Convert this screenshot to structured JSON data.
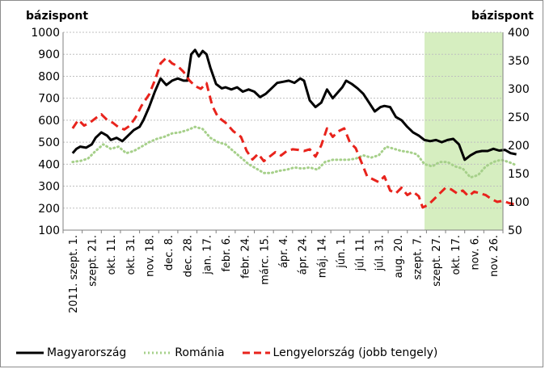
{
  "chart_data": {
    "type": "line",
    "y_unit_left": "bázispont",
    "y_unit_right": "bázispont",
    "ylim_left": [
      100,
      1000
    ],
    "ylim_right": [
      50,
      400
    ],
    "yticks_left": [
      100,
      200,
      300,
      400,
      500,
      600,
      700,
      800,
      900,
      1000
    ],
    "yticks_right": [
      50,
      100,
      150,
      200,
      250,
      300,
      350,
      400
    ],
    "x_tick_labels": [
      "2011. szept. 1.",
      "szept. 21.",
      "okt. 11.",
      "okt. 31.",
      "nov. 18.",
      "dec. 8.",
      "dec. 28.",
      "jan. 17.",
      "febr. 6.",
      "febr. 24.",
      "márc. 15.",
      "ápr. 4.",
      "ápr. 24.",
      "máj. 14.",
      "jún. 1.",
      "júl. 11.",
      "júl. 31.",
      "aug. 20.",
      "szept. 7.",
      "szept. 27.",
      "okt. 17.",
      "nov. 6.",
      "nov. 26."
    ],
    "highlight_region": {
      "from_tick": 18.4,
      "to_tick": 22.6,
      "color": "#d6eec0"
    },
    "grid": "horizontal",
    "legend_position": "bottom",
    "series": [
      {
        "name": "Magyarország",
        "axis": "left",
        "color": "#000000",
        "style": "solid",
        "points": [
          [
            0,
            450
          ],
          [
            0.2,
            470
          ],
          [
            0.4,
            480
          ],
          [
            0.7,
            475
          ],
          [
            1,
            490
          ],
          [
            1.2,
            520
          ],
          [
            1.5,
            545
          ],
          [
            1.8,
            530
          ],
          [
            2,
            510
          ],
          [
            2.3,
            520
          ],
          [
            2.6,
            505
          ],
          [
            2.9,
            530
          ],
          [
            3.2,
            555
          ],
          [
            3.5,
            570
          ],
          [
            3.7,
            600
          ],
          [
            4,
            660
          ],
          [
            4.3,
            730
          ],
          [
            4.6,
            790
          ],
          [
            4.9,
            760
          ],
          [
            5.2,
            780
          ],
          [
            5.5,
            790
          ],
          [
            5.8,
            780
          ],
          [
            6,
            780
          ],
          [
            6.2,
            900
          ],
          [
            6.4,
            920
          ],
          [
            6.6,
            890
          ],
          [
            6.8,
            915
          ],
          [
            7,
            900
          ],
          [
            7.2,
            840
          ],
          [
            7.5,
            765
          ],
          [
            7.8,
            745
          ],
          [
            8,
            750
          ],
          [
            8.3,
            740
          ],
          [
            8.6,
            750
          ],
          [
            8.9,
            730
          ],
          [
            9.2,
            740
          ],
          [
            9.5,
            730
          ],
          [
            9.8,
            705
          ],
          [
            10.1,
            720
          ],
          [
            10.4,
            745
          ],
          [
            10.7,
            770
          ],
          [
            11,
            775
          ],
          [
            11.3,
            780
          ],
          [
            11.6,
            770
          ],
          [
            11.9,
            790
          ],
          [
            12.1,
            780
          ],
          [
            12.4,
            690
          ],
          [
            12.7,
            660
          ],
          [
            13,
            680
          ],
          [
            13.3,
            740
          ],
          [
            13.6,
            700
          ],
          [
            13.9,
            730
          ],
          [
            14.1,
            750
          ],
          [
            14.3,
            780
          ],
          [
            14.6,
            765
          ],
          [
            14.9,
            745
          ],
          [
            15.2,
            720
          ],
          [
            15.5,
            680
          ],
          [
            15.8,
            640
          ],
          [
            16.1,
            660
          ],
          [
            16.3,
            665
          ],
          [
            16.6,
            660
          ],
          [
            16.9,
            615
          ],
          [
            17.2,
            600
          ],
          [
            17.5,
            570
          ],
          [
            17.8,
            545
          ],
          [
            18.1,
            530
          ],
          [
            18.4,
            510
          ],
          [
            18.7,
            505
          ],
          [
            19,
            510
          ],
          [
            19.3,
            500
          ],
          [
            19.6,
            510
          ],
          [
            19.9,
            515
          ],
          [
            20.2,
            490
          ],
          [
            20.5,
            420
          ],
          [
            20.8,
            440
          ],
          [
            21.1,
            455
          ],
          [
            21.4,
            460
          ],
          [
            21.7,
            460
          ],
          [
            22,
            470
          ],
          [
            22.3,
            462
          ],
          [
            22.6,
            465
          ],
          [
            22.9,
            450
          ],
          [
            23.2,
            445
          ]
        ]
      },
      {
        "name": "Románia",
        "axis": "left",
        "color": "#a6d08a",
        "style": "dotted",
        "points": [
          [
            0,
            410
          ],
          [
            0.4,
            415
          ],
          [
            0.8,
            425
          ],
          [
            1.2,
            460
          ],
          [
            1.6,
            490
          ],
          [
            2,
            470
          ],
          [
            2.4,
            480
          ],
          [
            2.8,
            450
          ],
          [
            3.2,
            460
          ],
          [
            3.6,
            480
          ],
          [
            4,
            500
          ],
          [
            4.4,
            515
          ],
          [
            4.8,
            525
          ],
          [
            5.2,
            540
          ],
          [
            5.6,
            545
          ],
          [
            6,
            555
          ],
          [
            6.4,
            570
          ],
          [
            6.8,
            560
          ],
          [
            7.2,
            520
          ],
          [
            7.6,
            500
          ],
          [
            8,
            490
          ],
          [
            8.4,
            460
          ],
          [
            8.8,
            430
          ],
          [
            9.2,
            400
          ],
          [
            9.6,
            380
          ],
          [
            10,
            360
          ],
          [
            10.4,
            360
          ],
          [
            10.8,
            370
          ],
          [
            11.2,
            375
          ],
          [
            11.6,
            385
          ],
          [
            12,
            380
          ],
          [
            12.4,
            385
          ],
          [
            12.8,
            375
          ],
          [
            13.2,
            410
          ],
          [
            13.6,
            420
          ],
          [
            14,
            420
          ],
          [
            14.4,
            420
          ],
          [
            14.8,
            425
          ],
          [
            15.2,
            440
          ],
          [
            15.6,
            430
          ],
          [
            16,
            440
          ],
          [
            16.4,
            480
          ],
          [
            16.8,
            470
          ],
          [
            17.2,
            460
          ],
          [
            17.6,
            455
          ],
          [
            18,
            445
          ],
          [
            18.4,
            400
          ],
          [
            18.8,
            390
          ],
          [
            19.2,
            410
          ],
          [
            19.6,
            410
          ],
          [
            20,
            390
          ],
          [
            20.4,
            380
          ],
          [
            20.8,
            340
          ],
          [
            21.2,
            350
          ],
          [
            21.6,
            390
          ],
          [
            22,
            410
          ],
          [
            22.4,
            420
          ],
          [
            22.8,
            410
          ],
          [
            23.2,
            395
          ]
        ]
      },
      {
        "name": "Lengyelország (jobb tengely)",
        "axis": "right",
        "color": "#e8231c",
        "style": "dashed",
        "points": [
          [
            0,
            230
          ],
          [
            0.3,
            245
          ],
          [
            0.6,
            235
          ],
          [
            0.9,
            240
          ],
          [
            1.2,
            248
          ],
          [
            1.5,
            255
          ],
          [
            1.8,
            245
          ],
          [
            2.1,
            240
          ],
          [
            2.4,
            232
          ],
          [
            2.7,
            228
          ],
          [
            3,
            235
          ],
          [
            3.3,
            250
          ],
          [
            3.6,
            270
          ],
          [
            4,
            290
          ],
          [
            4.3,
            315
          ],
          [
            4.6,
            345
          ],
          [
            4.9,
            355
          ],
          [
            5.2,
            345
          ],
          [
            5.5,
            340
          ],
          [
            5.8,
            330
          ],
          [
            6.1,
            315
          ],
          [
            6.4,
            305
          ],
          [
            6.7,
            300
          ],
          [
            7,
            310
          ],
          [
            7.3,
            270
          ],
          [
            7.6,
            250
          ],
          [
            8,
            240
          ],
          [
            8.4,
            225
          ],
          [
            8.8,
            215
          ],
          [
            9.1,
            190
          ],
          [
            9.4,
            175
          ],
          [
            9.7,
            185
          ],
          [
            10,
            172
          ],
          [
            10.3,
            180
          ],
          [
            10.6,
            188
          ],
          [
            10.9,
            182
          ],
          [
            11.2,
            190
          ],
          [
            11.5,
            193
          ],
          [
            11.8,
            192
          ],
          [
            12.1,
            190
          ],
          [
            12.4,
            193
          ],
          [
            12.7,
            180
          ],
          [
            13,
            200
          ],
          [
            13.3,
            230
          ],
          [
            13.6,
            215
          ],
          [
            13.9,
            225
          ],
          [
            14.2,
            230
          ],
          [
            14.5,
            205
          ],
          [
            14.8,
            195
          ],
          [
            15.1,
            170
          ],
          [
            15.4,
            145
          ],
          [
            15.7,
            140
          ],
          [
            16,
            135
          ],
          [
            16.3,
            145
          ],
          [
            16.6,
            120
          ],
          [
            16.9,
            115
          ],
          [
            17.2,
            125
          ],
          [
            17.5,
            112
          ],
          [
            17.8,
            118
          ],
          [
            18.1,
            110
          ],
          [
            18.3,
            90
          ],
          [
            18.6,
            95
          ],
          [
            18.9,
            105
          ],
          [
            19.2,
            115
          ],
          [
            19.5,
            125
          ],
          [
            19.8,
            122
          ],
          [
            20.1,
            115
          ],
          [
            20.4,
            120
          ],
          [
            20.7,
            110
          ],
          [
            21,
            118
          ],
          [
            21.3,
            115
          ],
          [
            21.6,
            112
          ],
          [
            21.9,
            105
          ],
          [
            22.2,
            100
          ],
          [
            22.5,
            102
          ],
          [
            22.8,
            98
          ],
          [
            23.2,
            95
          ]
        ]
      }
    ]
  }
}
